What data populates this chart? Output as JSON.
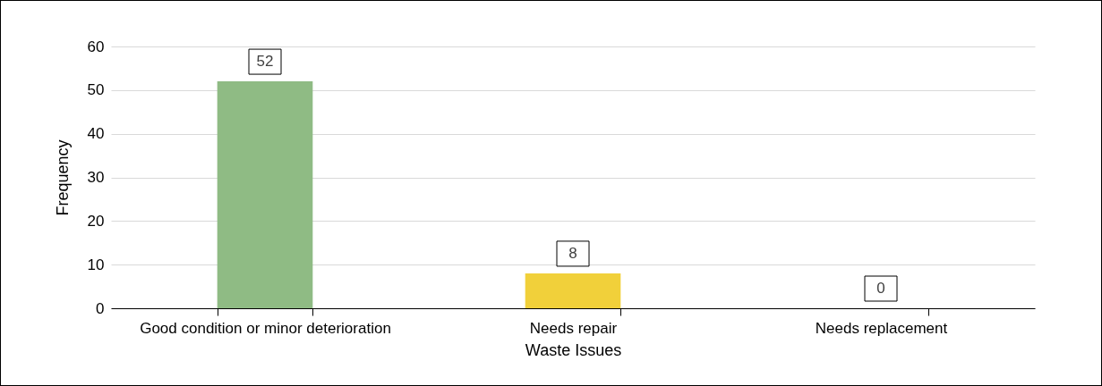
{
  "chart_data": {
    "type": "bar",
    "xlabel": "Waste Issues",
    "ylabel": "Frequency",
    "categories": [
      "Good condition or minor deterioration",
      "Needs repair",
      "Needs replacement"
    ],
    "values": [
      52,
      8,
      0
    ],
    "colors": [
      "#8fbb84",
      "#f1d03a",
      "#d9534f"
    ],
    "ylim": [
      0,
      60
    ],
    "yticks": [
      0,
      10,
      20,
      30,
      40,
      50,
      60
    ],
    "grid": "y",
    "data_labels": true
  }
}
